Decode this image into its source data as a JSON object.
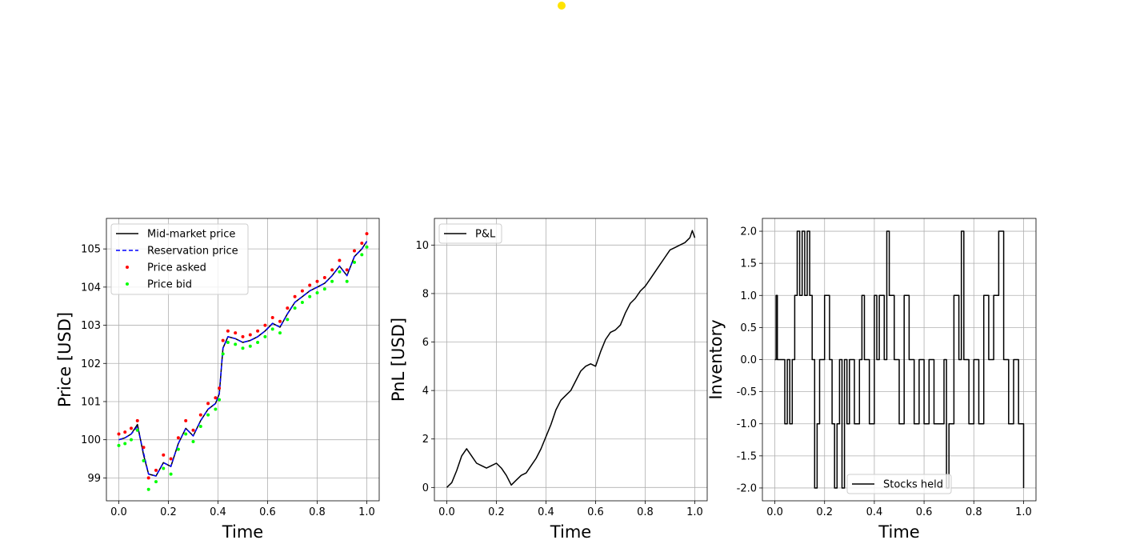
{
  "cursor": {
    "color": "#ffe300"
  },
  "chart_data": [
    {
      "type": "line",
      "xlabel": "Time",
      "ylabel": "Price [USD]",
      "xlim": [
        -0.05,
        1.05
      ],
      "ylim": [
        98.4,
        105.8
      ],
      "xticks": [
        0.0,
        0.2,
        0.4,
        0.6,
        0.8,
        1.0
      ],
      "yticks": [
        99,
        100,
        101,
        102,
        103,
        104,
        105
      ],
      "grid": true,
      "legend_placement": "upper-left",
      "x": [
        0.0,
        0.025,
        0.05,
        0.075,
        0.1,
        0.12,
        0.15,
        0.18,
        0.21,
        0.24,
        0.27,
        0.3,
        0.33,
        0.36,
        0.39,
        0.405,
        0.42,
        0.44,
        0.47,
        0.5,
        0.53,
        0.56,
        0.59,
        0.62,
        0.65,
        0.68,
        0.71,
        0.74,
        0.77,
        0.8,
        0.83,
        0.86,
        0.89,
        0.92,
        0.95,
        0.98,
        1.0
      ],
      "series": [
        {
          "name": "Mid-market price",
          "color": "#000000",
          "style": "solid",
          "values": [
            100.0,
            100.05,
            100.15,
            100.4,
            99.6,
            99.1,
            99.05,
            99.4,
            99.3,
            99.9,
            100.3,
            100.1,
            100.5,
            100.8,
            100.95,
            101.2,
            102.4,
            102.7,
            102.65,
            102.55,
            102.6,
            102.7,
            102.85,
            103.05,
            102.95,
            103.3,
            103.6,
            103.75,
            103.9,
            104.0,
            104.1,
            104.3,
            104.55,
            104.3,
            104.8,
            105.0,
            105.2
          ]
        },
        {
          "name": "Reservation price",
          "color": "#0000ff",
          "style": "dashed",
          "values": [
            100.0,
            100.05,
            100.15,
            100.35,
            99.65,
            99.1,
            99.05,
            99.4,
            99.3,
            99.9,
            100.3,
            100.1,
            100.5,
            100.8,
            100.95,
            101.2,
            102.4,
            102.7,
            102.65,
            102.55,
            102.6,
            102.7,
            102.85,
            103.05,
            102.95,
            103.3,
            103.6,
            103.75,
            103.9,
            104.0,
            104.1,
            104.3,
            104.55,
            104.3,
            104.8,
            105.0,
            105.2
          ]
        },
        {
          "name": "Price asked",
          "color": "#ff0000",
          "style": "markers",
          "values": [
            100.15,
            100.2,
            100.3,
            100.5,
            99.8,
            99.0,
            99.2,
            99.6,
            99.5,
            100.05,
            100.5,
            100.25,
            100.65,
            100.95,
            101.1,
            101.35,
            102.6,
            102.85,
            102.8,
            102.7,
            102.75,
            102.85,
            103.0,
            103.2,
            103.1,
            103.45,
            103.75,
            103.9,
            104.05,
            104.15,
            104.25,
            104.45,
            104.7,
            104.45,
            104.95,
            105.15,
            105.4
          ]
        },
        {
          "name": "Price bid",
          "color": "#00ff00",
          "style": "markers",
          "values": [
            99.85,
            99.9,
            100.0,
            100.25,
            99.45,
            98.7,
            98.9,
            99.25,
            99.1,
            99.75,
            100.15,
            99.95,
            100.35,
            100.65,
            100.8,
            101.05,
            102.25,
            102.55,
            102.5,
            102.4,
            102.45,
            102.55,
            102.7,
            102.9,
            102.8,
            103.15,
            103.45,
            103.6,
            103.75,
            103.85,
            103.95,
            104.15,
            104.4,
            104.15,
            104.65,
            104.85,
            105.05
          ]
        }
      ]
    },
    {
      "type": "line",
      "xlabel": "Time",
      "ylabel": "PnL [USD]",
      "xlim": [
        -0.05,
        1.05
      ],
      "ylim": [
        -0.55,
        11.1
      ],
      "xticks": [
        0.0,
        0.2,
        0.4,
        0.6,
        0.8,
        1.0
      ],
      "yticks": [
        0,
        2,
        4,
        6,
        8,
        10
      ],
      "grid": true,
      "legend_placement": "upper-left",
      "x": [
        0.0,
        0.02,
        0.04,
        0.06,
        0.08,
        0.1,
        0.12,
        0.14,
        0.16,
        0.18,
        0.2,
        0.22,
        0.24,
        0.26,
        0.28,
        0.3,
        0.32,
        0.34,
        0.36,
        0.38,
        0.4,
        0.42,
        0.44,
        0.46,
        0.48,
        0.5,
        0.52,
        0.54,
        0.56,
        0.58,
        0.6,
        0.62,
        0.64,
        0.66,
        0.68,
        0.7,
        0.72,
        0.74,
        0.76,
        0.78,
        0.8,
        0.82,
        0.84,
        0.86,
        0.88,
        0.9,
        0.92,
        0.94,
        0.96,
        0.98,
        0.99,
        1.0
      ],
      "series": [
        {
          "name": "P&L",
          "color": "#000000",
          "style": "solid",
          "values": [
            0.0,
            0.2,
            0.7,
            1.3,
            1.6,
            1.3,
            1.0,
            0.9,
            0.8,
            0.9,
            1.0,
            0.8,
            0.5,
            0.1,
            0.3,
            0.5,
            0.6,
            0.9,
            1.2,
            1.6,
            2.1,
            2.6,
            3.2,
            3.6,
            3.8,
            4.0,
            4.4,
            4.8,
            5.0,
            5.1,
            5.0,
            5.6,
            6.1,
            6.4,
            6.5,
            6.7,
            7.2,
            7.6,
            7.8,
            8.1,
            8.3,
            8.6,
            8.9,
            9.2,
            9.5,
            9.8,
            9.9,
            10.0,
            10.1,
            10.3,
            10.6,
            10.3
          ]
        }
      ]
    },
    {
      "type": "line",
      "xlabel": "Time",
      "ylabel": "Inventory",
      "xlim": [
        -0.05,
        1.05
      ],
      "ylim": [
        -2.2,
        2.2
      ],
      "xticks": [
        0.0,
        0.2,
        0.4,
        0.6,
        0.8,
        1.0
      ],
      "yticks": [
        -2.0,
        -1.5,
        -1.0,
        -0.5,
        0.0,
        0.5,
        1.0,
        1.5,
        2.0
      ],
      "grid": true,
      "legend_placement": "lower-center",
      "x": [
        0.0,
        0.005,
        0.01,
        0.02,
        0.04,
        0.05,
        0.06,
        0.07,
        0.08,
        0.09,
        0.1,
        0.11,
        0.12,
        0.13,
        0.14,
        0.15,
        0.16,
        0.17,
        0.18,
        0.2,
        0.22,
        0.23,
        0.24,
        0.25,
        0.26,
        0.27,
        0.28,
        0.29,
        0.3,
        0.32,
        0.34,
        0.35,
        0.36,
        0.38,
        0.4,
        0.41,
        0.42,
        0.44,
        0.45,
        0.46,
        0.48,
        0.5,
        0.52,
        0.54,
        0.56,
        0.58,
        0.6,
        0.62,
        0.64,
        0.66,
        0.68,
        0.69,
        0.7,
        0.72,
        0.74,
        0.75,
        0.76,
        0.78,
        0.8,
        0.82,
        0.84,
        0.86,
        0.88,
        0.9,
        0.92,
        0.94,
        0.96,
        0.98,
        1.0
      ],
      "series": [
        {
          "name": "Stocks held",
          "color": "#000000",
          "style": "step",
          "values": [
            0.0,
            1.0,
            0.0,
            0.0,
            -1.0,
            0.0,
            -1.0,
            0.0,
            1.0,
            2.0,
            1.0,
            2.0,
            1.0,
            2.0,
            1.0,
            0.0,
            -2.0,
            -1.0,
            0.0,
            1.0,
            0.0,
            -1.0,
            -2.0,
            -1.0,
            0.0,
            -2.0,
            0.0,
            -1.0,
            0.0,
            -1.0,
            0.0,
            1.0,
            0.0,
            -1.0,
            1.0,
            0.0,
            1.0,
            0.0,
            2.0,
            1.0,
            0.0,
            -1.0,
            1.0,
            0.0,
            -1.0,
            0.0,
            -1.0,
            0.0,
            -1.0,
            -1.0,
            0.0,
            -2.0,
            -1.0,
            1.0,
            0.0,
            2.0,
            0.0,
            -1.0,
            0.0,
            -1.0,
            1.0,
            0.0,
            1.0,
            2.0,
            0.0,
            -1.0,
            0.0,
            -1.0,
            -2.0
          ]
        }
      ]
    }
  ]
}
